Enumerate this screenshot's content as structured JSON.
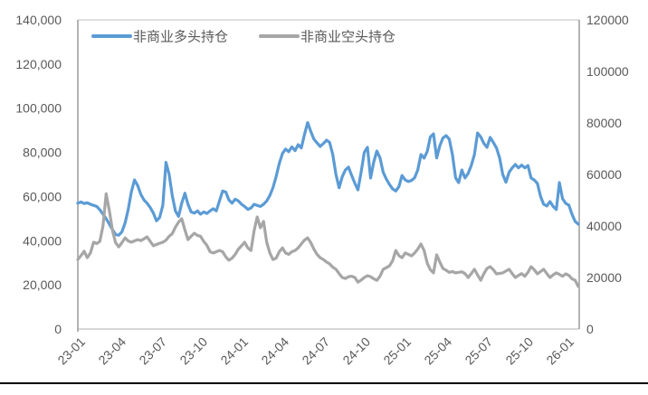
{
  "chart_data": {
    "type": "line",
    "title": "",
    "legend_position": "top",
    "x_tick_labels": [
      "23-01",
      "23-04",
      "23-07",
      "23-10",
      "24-01",
      "24-04",
      "24-07",
      "24-10",
      "25-01",
      "25-04",
      "25-07",
      "25-10",
      "26-01"
    ],
    "left_axis": {
      "min": 0,
      "max": 140000,
      "step": 20000,
      "tick_labels": [
        "0",
        "20,000",
        "40,000",
        "60,000",
        "80,000",
        "100,000",
        "120,000",
        "140,000"
      ]
    },
    "right_axis": {
      "min": 0,
      "max": 120000,
      "step": 20000,
      "tick_labels": [
        "0",
        "20000",
        "40000",
        "60000",
        "80000",
        "100000",
        "120000"
      ]
    },
    "series": [
      {
        "name": "非商业多头持仓",
        "axis": "left",
        "color": "#5B9BD5",
        "values": [
          57000,
          57500,
          56800,
          57200,
          56500,
          56000,
          55500,
          54000,
          52000,
          50000,
          47500,
          45000,
          42800,
          42500,
          44000,
          48000,
          54000,
          62000,
          67500,
          65000,
          61000,
          58500,
          57000,
          55000,
          52500,
          49000,
          50500,
          56000,
          75500,
          70000,
          60500,
          53500,
          51000,
          57000,
          61500,
          56500,
          53000,
          52500,
          53500,
          52000,
          53000,
          52300,
          53500,
          54500,
          53500,
          58000,
          62500,
          62000,
          58500,
          57000,
          58800,
          58000,
          56500,
          55500,
          54200,
          54800,
          56500,
          56000,
          55500,
          56500,
          58000,
          60500,
          64000,
          69000,
          75000,
          79500,
          81500,
          80300,
          82500,
          80800,
          83500,
          82000,
          88000,
          93500,
          89500,
          86000,
          84300,
          82700,
          84000,
          85500,
          84500,
          79000,
          70000,
          64000,
          69000,
          72000,
          73300,
          69500,
          66000,
          63000,
          71000,
          80000,
          82300,
          68400,
          75500,
          80600,
          77500,
          71000,
          68000,
          65500,
          63500,
          62500,
          64500,
          69500,
          67500,
          66800,
          67300,
          68500,
          72000,
          79000,
          77400,
          80500,
          87000,
          88400,
          77500,
          83000,
          86500,
          87600,
          86000,
          79000,
          68500,
          66300,
          72000,
          68400,
          70500,
          74000,
          79000,
          88800,
          87000,
          84000,
          82300,
          86800,
          84500,
          82000,
          77400,
          70000,
          66500,
          71000,
          73000,
          74500,
          73000,
          74200,
          73000,
          74000,
          68400,
          67500,
          65900,
          60000,
          56500,
          55700,
          57700,
          55500,
          54100,
          66300,
          59000,
          56900,
          56100,
          52000,
          48700,
          47500
        ]
      },
      {
        "name": "非商业空头持仓",
        "axis": "right",
        "color": "#A6A6A6",
        "values": [
          27000,
          28500,
          30200,
          27700,
          29500,
          33700,
          33200,
          34000,
          40000,
          52500,
          46000,
          38200,
          33500,
          31900,
          33500,
          35400,
          34200,
          33700,
          34200,
          34700,
          34300,
          35000,
          35800,
          34000,
          32300,
          32800,
          33300,
          33700,
          34500,
          36000,
          37000,
          39500,
          41500,
          42800,
          38500,
          34700,
          36000,
          37200,
          36300,
          36000,
          34000,
          32500,
          30000,
          29500,
          30000,
          30500,
          30000,
          28000,
          26700,
          27500,
          29000,
          31000,
          32300,
          33700,
          31500,
          30500,
          38200,
          43500,
          39300,
          41800,
          33700,
          29500,
          27000,
          27500,
          30000,
          31500,
          29500,
          29000,
          30000,
          30500,
          31500,
          33000,
          34500,
          35400,
          33500,
          31000,
          29000,
          27700,
          27000,
          26000,
          25300,
          24000,
          23200,
          21500,
          20000,
          19600,
          20300,
          20500,
          20000,
          18200,
          19000,
          20000,
          20700,
          20300,
          19500,
          18900,
          20500,
          23200,
          23800,
          24500,
          26500,
          30500,
          28500,
          27700,
          29500,
          29000,
          28400,
          29500,
          31000,
          33000,
          30500,
          25500,
          23000,
          21800,
          28800,
          26000,
          23500,
          22800,
          22000,
          22300,
          21800,
          22000,
          22200,
          21500,
          20000,
          21500,
          23200,
          21000,
          18900,
          21500,
          23500,
          24200,
          23000,
          21400,
          21600,
          21800,
          22500,
          23200,
          21500,
          20000,
          20800,
          21500,
          20500,
          22000,
          24200,
          23000,
          21400,
          22300,
          23200,
          21500,
          20000,
          21000,
          21800,
          21200,
          20500,
          21400,
          20800,
          19500,
          18900,
          16500
        ]
      }
    ],
    "colors": {
      "long_series": "#5B9BD5",
      "short_series": "#A6A6A6",
      "axis_text": "#595959",
      "plot_border_light": "#BFBFBF",
      "value_axis_line": "#8C8C8C",
      "footer_rule": "#000000"
    }
  }
}
